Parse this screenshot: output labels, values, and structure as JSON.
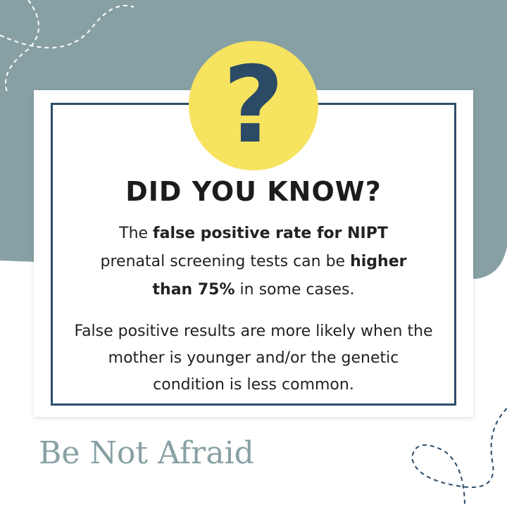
{
  "badge": "?",
  "heading": "DID YOU KNOW?",
  "paragraph1": [
    {
      "text": "The ",
      "bold": false
    },
    {
      "text": "false positive rate for NIPT",
      "bold": true
    },
    {
      "text": " prenatal screening tests can be ",
      "bold": false
    },
    {
      "text": "higher than 75%",
      "bold": true
    },
    {
      "text": " in some cases.",
      "bold": false
    }
  ],
  "paragraph2": "False positive results are more likely when the mother is younger and/or the genetic condition is less common.",
  "brand": "Be Not Afraid"
}
